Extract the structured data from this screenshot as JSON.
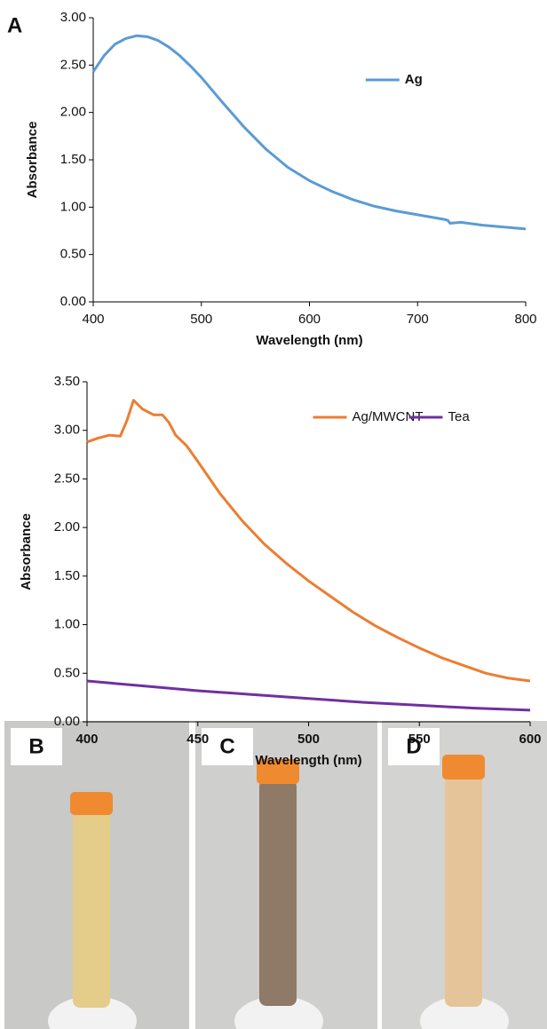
{
  "chart_data": [
    {
      "type": "line",
      "panel_label": "A",
      "xlabel": "Wavelength (nm)",
      "ylabel": "Absorbance",
      "x": [
        400,
        410,
        420,
        430,
        440,
        450,
        460,
        470,
        480,
        490,
        500,
        520,
        540,
        560,
        580,
        600,
        620,
        640,
        660,
        680,
        700,
        720,
        725,
        728,
        730,
        740,
        760,
        780,
        800
      ],
      "series": [
        {
          "name": "Ag",
          "color": "#5b9bd5",
          "values": [
            2.43,
            2.6,
            2.72,
            2.78,
            2.81,
            2.8,
            2.76,
            2.69,
            2.6,
            2.49,
            2.37,
            2.1,
            1.84,
            1.61,
            1.42,
            1.28,
            1.17,
            1.08,
            1.01,
            0.96,
            0.92,
            0.88,
            0.87,
            0.86,
            0.83,
            0.84,
            0.81,
            0.79,
            0.77
          ]
        }
      ],
      "xlim": [
        400,
        800
      ],
      "xticks": [
        400,
        500,
        600,
        700,
        800
      ],
      "ylim": [
        0,
        3
      ],
      "yticks": [
        {
          "value": 0,
          "label": "0.00"
        },
        {
          "value": 0.5,
          "label": "0.50"
        },
        {
          "value": 1,
          "label": "1.00"
        },
        {
          "value": 1.5,
          "label": "1.50"
        },
        {
          "value": 2,
          "label": "2.00"
        },
        {
          "value": 2.5,
          "label": "2.50"
        },
        {
          "value": 3,
          "label": "3.00"
        }
      ],
      "legend": "right",
      "grid": false
    },
    {
      "type": "line",
      "xlabel": "Wavelength (nm)",
      "ylabel": "Absorbance",
      "series": [
        {
          "name": "Ag/MWCNT",
          "color": "#ed7d31",
          "x": [
            400,
            405,
            410,
            415,
            418,
            421,
            425,
            430,
            434,
            437,
            440,
            445,
            450,
            460,
            470,
            480,
            490,
            500,
            510,
            520,
            530,
            540,
            550,
            560,
            570,
            580,
            590,
            600
          ],
          "values": [
            2.88,
            2.92,
            2.95,
            2.94,
            3.1,
            3.31,
            3.22,
            3.16,
            3.16,
            3.08,
            2.95,
            2.84,
            2.68,
            2.35,
            2.07,
            1.83,
            1.63,
            1.45,
            1.29,
            1.13,
            0.99,
            0.87,
            0.76,
            0.66,
            0.58,
            0.5,
            0.45,
            0.42
          ]
        },
        {
          "name": "Tea",
          "color": "#7030a0",
          "x": [
            400,
            425,
            450,
            475,
            500,
            525,
            550,
            575,
            600
          ],
          "values": [
            0.42,
            0.37,
            0.32,
            0.28,
            0.24,
            0.2,
            0.17,
            0.14,
            0.12
          ]
        }
      ],
      "xlim": [
        400,
        600
      ],
      "xticks": [
        400,
        450,
        500,
        550,
        600
      ],
      "ylim": [
        0,
        3.5
      ],
      "yticks": [
        {
          "value": 0,
          "label": "0.00"
        },
        {
          "value": 0.5,
          "label": "0.50"
        },
        {
          "value": 1,
          "label": "1.00"
        },
        {
          "value": 1.5,
          "label": "1.50"
        },
        {
          "value": 2,
          "label": "2.00"
        },
        {
          "value": 2.5,
          "label": "2.50"
        },
        {
          "value": 3,
          "label": "3.00"
        },
        {
          "value": 3.5,
          "label": "3.50"
        }
      ],
      "legend": "top",
      "grid": false
    }
  ],
  "photos": [
    {
      "label": "B"
    },
    {
      "label": "C"
    },
    {
      "label": "D"
    }
  ]
}
